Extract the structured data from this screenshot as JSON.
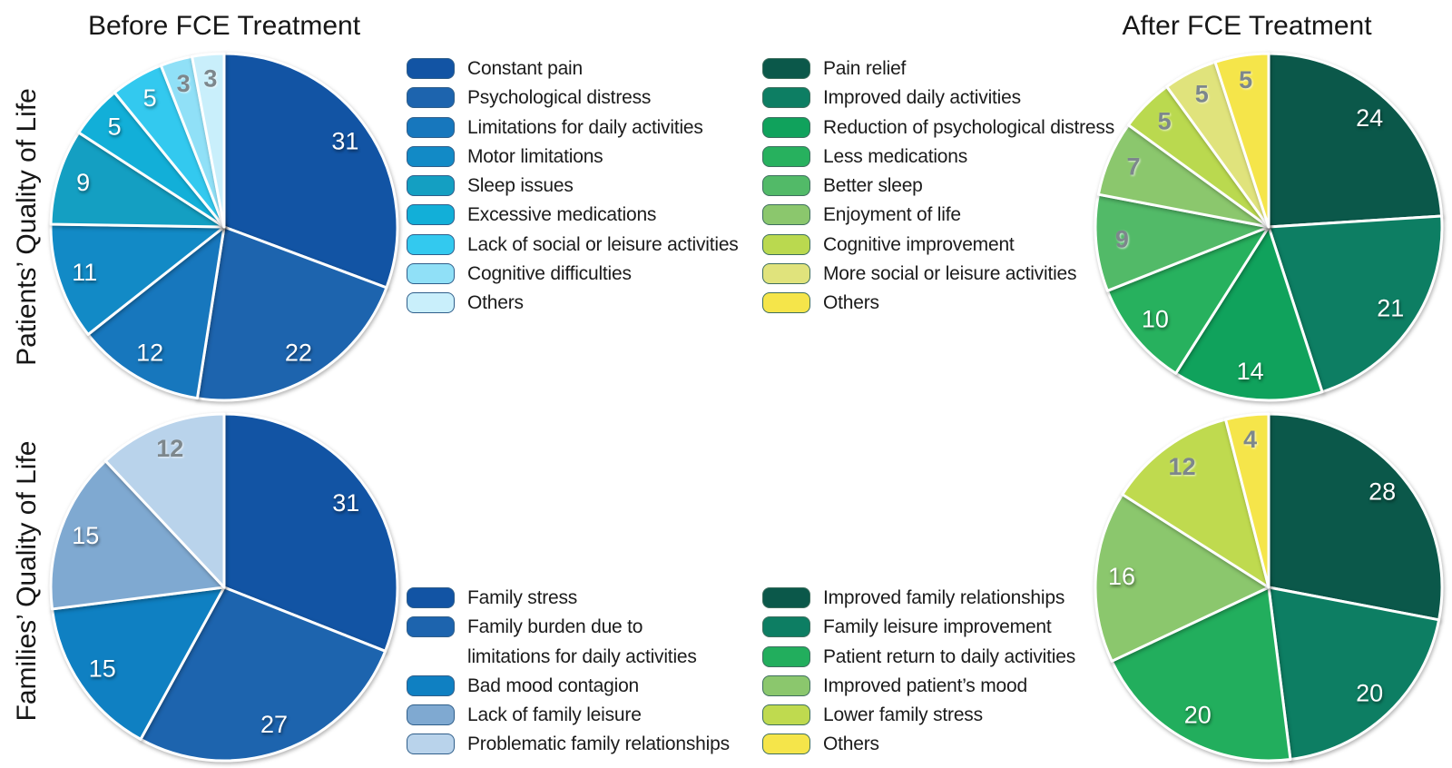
{
  "titles": {
    "before": "Before FCE Treatment",
    "after": "After FCE Treatment"
  },
  "row_labels": {
    "patients": "Patients’ Quality of Life",
    "families": "Families’ Quality of Life"
  },
  "value_label_colors": {
    "light": "#ffffff",
    "dark": "#7d878c"
  },
  "chart_data": [
    {
      "id": "patients-before",
      "type": "pie",
      "title": "Before FCE Treatment",
      "group": "Patients’ Quality of Life",
      "start_angle_deg": 0,
      "direction": "clockwise",
      "legend_position": "right-of-pie",
      "legend_border": "#2f5e8a",
      "slices": [
        {
          "label": "Constant pain",
          "value": 31,
          "color": "#1254a4",
          "text": "light"
        },
        {
          "label": "Psychological distress",
          "value": 22,
          "color": "#1d64ae",
          "text": "light"
        },
        {
          "label": "Limitations for daily activities",
          "value": 12,
          "color": "#1777bd",
          "text": "light"
        },
        {
          "label": "Motor limitations",
          "value": 11,
          "color": "#128ac6",
          "text": "light"
        },
        {
          "label": "Sleep issues",
          "value": 9,
          "color": "#149fc2",
          "text": "light"
        },
        {
          "label": "Excessive medications",
          "value": 5,
          "color": "#12afd8",
          "text": "light"
        },
        {
          "label": "Lack of  social or leisure activities",
          "value": 5,
          "color": "#33c9ef",
          "text": "light"
        },
        {
          "label": "Cognitive difficulties",
          "value": 3,
          "color": "#90e0f7",
          "text": "dark"
        },
        {
          "label": "Others",
          "value": 3,
          "color": "#c9effb",
          "text": "dark"
        }
      ]
    },
    {
      "id": "patients-after",
      "type": "pie",
      "title": "After FCE Treatment",
      "group": "Patients’ Quality of Life",
      "start_angle_deg": 0,
      "direction": "clockwise",
      "legend_position": "left-of-pie",
      "legend_border": "#3e6e5e",
      "slices": [
        {
          "label": "Pain relief",
          "value": 24,
          "color": "#0b584a",
          "text": "light"
        },
        {
          "label": "Improved daily activities",
          "value": 21,
          "color": "#0d7e63",
          "text": "light"
        },
        {
          "label": "Reduction of psychological distress",
          "value": 14,
          "color": "#10a25c",
          "text": "light"
        },
        {
          "label": "Less medications",
          "value": 10,
          "color": "#27b15e",
          "text": "light"
        },
        {
          "label": "Better sleep",
          "value": 9,
          "color": "#52ba68",
          "text": "dark"
        },
        {
          "label": "Enjoyment of life",
          "value": 7,
          "color": "#8bc76d",
          "text": "dark"
        },
        {
          "label": "Cognitive improvement",
          "value": 5,
          "color": "#bad94f",
          "text": "dark"
        },
        {
          "label": "More social or leisure activities",
          "value": 5,
          "color": "#e0e37c",
          "text": "dark"
        },
        {
          "label": "Others",
          "value": 5,
          "color": "#f5e54a",
          "text": "dark"
        }
      ]
    },
    {
      "id": "families-before",
      "type": "pie",
      "title": "Before FCE Treatment",
      "group": "Families’ Quality of Life",
      "start_angle_deg": 0,
      "direction": "clockwise",
      "legend_position": "right-of-pie",
      "legend_border": "#2f5e8a",
      "slices": [
        {
          "label": "Family stress",
          "value": 31,
          "color": "#1254a4",
          "text": "light"
        },
        {
          "label": "Family burden due to\nlimitations for daily activities",
          "value": 27,
          "color": "#1d64ae",
          "text": "light"
        },
        {
          "label": "Bad mood contagion",
          "value": 15,
          "color": "#0f80c2",
          "text": "light"
        },
        {
          "label": "Lack of family leisure",
          "value": 15,
          "color": "#7fa9d1",
          "text": "light"
        },
        {
          "label": "Problematic family relationships",
          "value": 12,
          "color": "#b9d3eb",
          "text": "dark"
        }
      ]
    },
    {
      "id": "families-after",
      "type": "pie",
      "title": "After FCE Treatment",
      "group": "Families’ Quality of Life",
      "start_angle_deg": 0,
      "direction": "clockwise",
      "legend_position": "left-of-pie",
      "legend_border": "#3e6e5e",
      "slices": [
        {
          "label": "Improved family relationships",
          "value": 28,
          "color": "#0b584a",
          "text": "light"
        },
        {
          "label": "Family leisure improvement",
          "value": 20,
          "color": "#0d7e63",
          "text": "light"
        },
        {
          "label": "Patient return to daily activities",
          "value": 20,
          "color": "#22ae5d",
          "text": "light"
        },
        {
          "label": "Improved patient’s mood",
          "value": 16,
          "color": "#8bc76d",
          "text": "light"
        },
        {
          "label": "Lower family stress",
          "value": 12,
          "color": "#bfda4f",
          "text": "dark"
        },
        {
          "label": "Others",
          "value": 4,
          "color": "#f5e54a",
          "text": "dark"
        }
      ]
    }
  ]
}
